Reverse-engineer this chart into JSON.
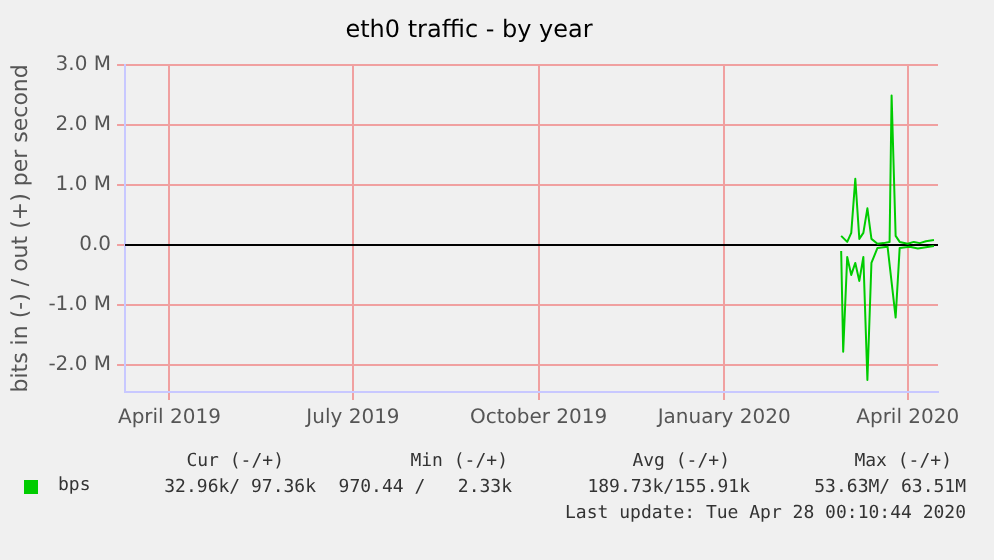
{
  "chart_data": {
    "type": "line",
    "title": "eth0 traffic - by year",
    "ylabel": "bits in (-) / out (+) per second",
    "xlim": [
      "2019-03-10",
      "2020-04-16"
    ],
    "xticks": [
      {
        "value": "2019-04-01",
        "label": "April 2019"
      },
      {
        "value": "2019-07-01",
        "label": "July 2019"
      },
      {
        "value": "2019-10-01",
        "label": "October 2019"
      },
      {
        "value": "2020-01-01",
        "label": "January 2020"
      },
      {
        "value": "2020-04-01",
        "label": "April 2020"
      }
    ],
    "ylim": [
      -2450000,
      3000000
    ],
    "yticks": [
      {
        "value": -2000000,
        "label": "-2.0 M"
      },
      {
        "value": -1000000,
        "label": "-1.0 M"
      },
      {
        "value": 0,
        "label": "0.0"
      },
      {
        "value": 1000000,
        "label": "1.0 M"
      },
      {
        "value": 2000000,
        "label": "2.0 M"
      },
      {
        "value": 3000000,
        "label": "3.0 M"
      }
    ],
    "grid": true,
    "legend": "bottom",
    "marker": "none",
    "line_style": "solid",
    "ref_lines": [
      {
        "axis": "y",
        "value": 0,
        "color": "#000000"
      }
    ],
    "series": [
      {
        "name": "bps",
        "color": "#00cc00",
        "x": [
          "2020-02-28",
          "2020-03-02",
          "2020-03-04",
          "2020-03-06",
          "2020-03-08",
          "2020-03-10",
          "2020-03-12",
          "2020-03-14",
          "2020-03-17",
          "2020-03-20",
          "2020-03-23",
          "2020-03-24",
          "2020-03-26",
          "2020-03-28",
          "2020-04-01",
          "2020-04-04",
          "2020-04-07",
          "2020-04-10",
          "2020-04-14"
        ],
        "values": [
          150000,
          50000,
          200000,
          1100000,
          100000,
          200000,
          610000,
          100000,
          20000,
          30000,
          50000,
          2490000,
          150000,
          50000,
          20000,
          50000,
          30000,
          60000,
          80000
        ]
      },
      {
        "color": "#00cc00",
        "x": [
          "2020-02-28",
          "2020-02-29",
          "2020-03-02",
          "2020-03-04",
          "2020-03-06",
          "2020-03-08",
          "2020-03-10",
          "2020-03-12",
          "2020-03-14",
          "2020-03-17",
          "2020-03-22",
          "2020-03-26",
          "2020-03-28",
          "2020-04-02",
          "2020-04-06",
          "2020-04-10",
          "2020-04-14"
        ],
        "values": [
          -100000,
          -1780000,
          -200000,
          -500000,
          -300000,
          -600000,
          -200000,
          -2250000,
          -300000,
          -50000,
          -30000,
          -1210000,
          -50000,
          -30000,
          -60000,
          -40000,
          -20000
        ]
      }
    ],
    "annotations": [
      "Cur (-/+)",
      "Min (-/+)",
      "Avg (-/+)",
      "Max (-/+)",
      "32.96k/ 97.36k",
      "970.44 /   2.33k",
      "189.73k/155.91k",
      "53.63M/ 63.51M",
      "Last update: Tue Apr 28 00:10:44 2020"
    ]
  }
}
